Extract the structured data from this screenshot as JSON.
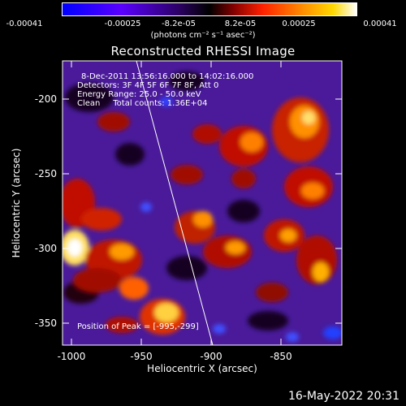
{
  "colorbar": {
    "tick_labels": [
      "-0.00041",
      "-0.00025",
      "-8.2e-05",
      "8.2e-05",
      "0.00025",
      "0.00041"
    ],
    "units_label": "(photons cm⁻² s⁻¹ asec⁻²)",
    "colors": [
      "#0000ff",
      "#7f00ff",
      "#000000",
      "#ff0000",
      "#ff9a00",
      "#ffffff"
    ]
  },
  "title": "Reconstructed RHESSI Image",
  "annotations": {
    "line1": "8-Dec-2011 13:56:16.000 to 14:02:16.000",
    "line2": "Detectors: 3F 4F 5F 6F 7F 8F, Att 0",
    "line3": "Energy Range: 25.0 - 50.0 keV",
    "line4": "Clean     Total counts: 1.36E+04",
    "peak": "Position of Peak = [-995,-299]"
  },
  "axes": {
    "x_label": "Heliocentric X (arcsec)",
    "y_label": "Heliocentric Y (arcsec)",
    "x_ticks": [
      "-1000",
      "-950",
      "-900",
      "-850"
    ],
    "y_ticks": [
      "-200",
      "-250",
      "-300",
      "-350"
    ]
  },
  "footer": "16-May-2022 20:31"
}
